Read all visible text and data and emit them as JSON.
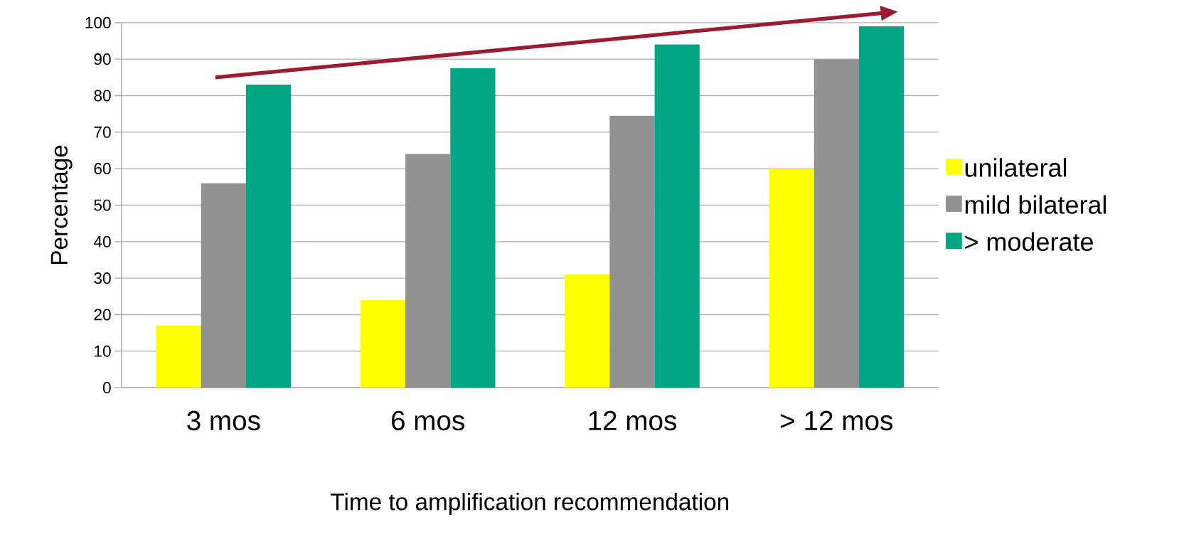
{
  "chart_data": {
    "type": "bar",
    "xlabel": "Time to amplification recommendation",
    "ylabel": "Percentage",
    "categories": [
      "3 mos",
      "6 mos",
      "12 mos",
      "> 12 mos"
    ],
    "series": [
      {
        "name": "unilateral",
        "color": "#ffff00",
        "values": [
          17,
          24,
          31,
          60
        ]
      },
      {
        "name": "mild bilateral",
        "color": "#929292",
        "values": [
          56,
          64,
          74.5,
          90
        ]
      },
      {
        "name": "> moderate",
        "color": "#00a685",
        "values": [
          83,
          87.5,
          94,
          99
        ]
      }
    ],
    "ylim": [
      0,
      100
    ],
    "yticks": [
      0,
      10,
      20,
      30,
      40,
      50,
      60,
      70,
      80,
      90,
      100
    ],
    "grid": "y",
    "legend": "right"
  }
}
